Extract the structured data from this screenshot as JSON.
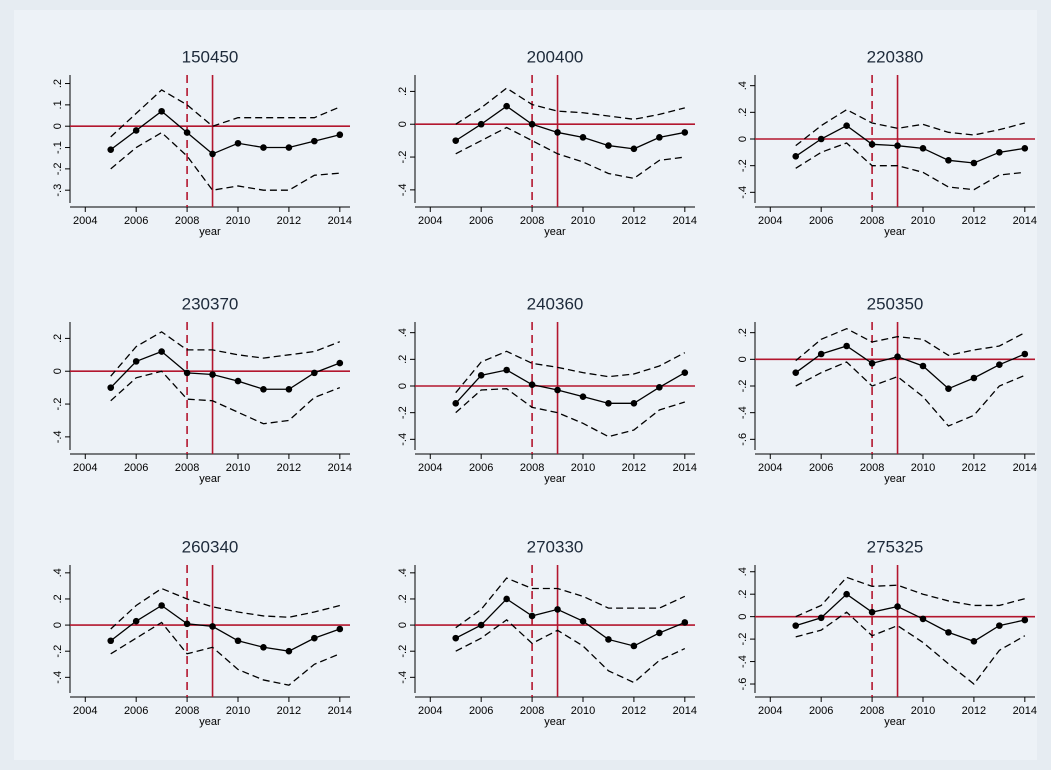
{
  "chart_data": [
    {
      "type": "line",
      "title": "150450",
      "xlabel": "year",
      "x": [
        2005,
        2006,
        2007,
        2008,
        2009,
        2010,
        2011,
        2012,
        2013,
        2014
      ],
      "xlim": [
        2003.4,
        2014.4
      ],
      "xticks": [
        2004,
        2006,
        2008,
        2010,
        2012,
        2014
      ],
      "ylim": [
        -0.36,
        0.24
      ],
      "yticks": [
        {
          "value": -0.3,
          "label": "-.3"
        },
        {
          "value": -0.2,
          "label": "-.2"
        },
        {
          "value": -0.1,
          "label": "-.1"
        },
        0,
        {
          "value": 0.1,
          "label": ".1"
        },
        {
          "value": 0.2,
          "label": ".2"
        }
      ],
      "reference_lines": {
        "color": "#b3162e",
        "y": [
          0
        ],
        "x": [
          {
            "value": 2008,
            "dash": true
          },
          {
            "value": 2009,
            "dash": false
          }
        ]
      },
      "series": [
        {
          "color": "#000000",
          "dash": false,
          "marker": true,
          "values": [
            -0.11,
            -0.02,
            0.07,
            -0.03,
            -0.13,
            -0.08,
            -0.1,
            -0.1,
            -0.07,
            -0.04
          ]
        },
        {
          "color": "#000000",
          "dash": true,
          "marker": false,
          "values": [
            -0.05,
            0.06,
            0.17,
            0.1,
            0.0,
            0.04,
            0.04,
            0.04,
            0.04,
            0.09
          ]
        },
        {
          "color": "#000000",
          "dash": true,
          "marker": false,
          "values": [
            -0.2,
            -0.1,
            -0.03,
            -0.14,
            -0.3,
            -0.28,
            -0.3,
            -0.3,
            -0.23,
            -0.22
          ]
        }
      ]
    },
    {
      "type": "line",
      "title": "200400",
      "xlabel": "year",
      "x": [
        2005,
        2006,
        2007,
        2008,
        2009,
        2010,
        2011,
        2012,
        2013,
        2014
      ],
      "xlim": [
        2003.4,
        2014.4
      ],
      "xticks": [
        2004,
        2006,
        2008,
        2010,
        2012,
        2014
      ],
      "ylim": [
        -0.48,
        0.3
      ],
      "yticks": [
        {
          "value": -0.4,
          "label": "-.4"
        },
        {
          "value": -0.2,
          "label": "-.2"
        },
        0,
        {
          "value": 0.2,
          "label": ".2"
        }
      ],
      "reference_lines": {
        "color": "#b3162e",
        "y": [
          0
        ],
        "x": [
          {
            "value": 2008,
            "dash": true
          },
          {
            "value": 2009,
            "dash": false
          }
        ]
      },
      "series": [
        {
          "color": "#000000",
          "dash": false,
          "marker": true,
          "values": [
            -0.1,
            0.0,
            0.11,
            0.0,
            -0.05,
            -0.08,
            -0.13,
            -0.15,
            -0.08,
            -0.05
          ]
        },
        {
          "color": "#000000",
          "dash": true,
          "marker": false,
          "values": [
            0.0,
            0.1,
            0.22,
            0.12,
            0.08,
            0.07,
            0.05,
            0.03,
            0.06,
            0.1
          ]
        },
        {
          "color": "#000000",
          "dash": true,
          "marker": false,
          "values": [
            -0.18,
            -0.1,
            -0.02,
            -0.1,
            -0.18,
            -0.23,
            -0.3,
            -0.33,
            -0.22,
            -0.2
          ]
        }
      ]
    },
    {
      "type": "line",
      "title": "220380",
      "xlabel": "year",
      "x": [
        2005,
        2006,
        2007,
        2008,
        2009,
        2010,
        2011,
        2012,
        2013,
        2014
      ],
      "xlim": [
        2003.4,
        2014.4
      ],
      "xticks": [
        2004,
        2006,
        2008,
        2010,
        2012,
        2014
      ],
      "ylim": [
        -0.48,
        0.48
      ],
      "yticks": [
        {
          "value": -0.4,
          "label": "-.4"
        },
        {
          "value": -0.2,
          "label": "-.2"
        },
        0,
        {
          "value": 0.2,
          "label": ".2"
        },
        {
          "value": 0.4,
          "label": ".4"
        }
      ],
      "reference_lines": {
        "color": "#b3162e",
        "y": [
          0
        ],
        "x": [
          {
            "value": 2008,
            "dash": true
          },
          {
            "value": 2009,
            "dash": false
          }
        ]
      },
      "series": [
        {
          "color": "#000000",
          "dash": false,
          "marker": true,
          "values": [
            -0.13,
            0.0,
            0.1,
            -0.04,
            -0.05,
            -0.07,
            -0.16,
            -0.18,
            -0.1,
            -0.07
          ]
        },
        {
          "color": "#000000",
          "dash": true,
          "marker": false,
          "values": [
            -0.05,
            0.1,
            0.22,
            0.12,
            0.08,
            0.11,
            0.05,
            0.03,
            0.07,
            0.12
          ]
        },
        {
          "color": "#000000",
          "dash": true,
          "marker": false,
          "values": [
            -0.22,
            -0.1,
            -0.03,
            -0.2,
            -0.2,
            -0.25,
            -0.36,
            -0.38,
            -0.27,
            -0.25
          ]
        }
      ]
    },
    {
      "type": "line",
      "title": "230370",
      "xlabel": "year",
      "x": [
        2005,
        2006,
        2007,
        2008,
        2009,
        2010,
        2011,
        2012,
        2013,
        2014
      ],
      "xlim": [
        2003.4,
        2014.4
      ],
      "xticks": [
        2004,
        2006,
        2008,
        2010,
        2012,
        2014
      ],
      "ylim": [
        -0.48,
        0.3
      ],
      "yticks": [
        {
          "value": -0.4,
          "label": "-.4"
        },
        {
          "value": -0.2,
          "label": "-.2"
        },
        0,
        {
          "value": 0.2,
          "label": ".2"
        }
      ],
      "reference_lines": {
        "color": "#b3162e",
        "y": [
          0
        ],
        "x": [
          {
            "value": 2008,
            "dash": true
          },
          {
            "value": 2009,
            "dash": false
          }
        ]
      },
      "series": [
        {
          "color": "#000000",
          "dash": false,
          "marker": true,
          "values": [
            -0.1,
            0.06,
            0.12,
            -0.01,
            -0.02,
            -0.06,
            -0.11,
            -0.11,
            -0.01,
            0.05
          ]
        },
        {
          "color": "#000000",
          "dash": true,
          "marker": false,
          "values": [
            -0.03,
            0.15,
            0.24,
            0.13,
            0.13,
            0.1,
            0.08,
            0.1,
            0.12,
            0.18
          ]
        },
        {
          "color": "#000000",
          "dash": true,
          "marker": false,
          "values": [
            -0.18,
            -0.04,
            0.0,
            -0.17,
            -0.18,
            -0.25,
            -0.32,
            -0.3,
            -0.16,
            -0.1
          ]
        }
      ]
    },
    {
      "type": "line",
      "title": "240360",
      "xlabel": "year",
      "x": [
        2005,
        2006,
        2007,
        2008,
        2009,
        2010,
        2011,
        2012,
        2013,
        2014
      ],
      "xlim": [
        2003.4,
        2014.4
      ],
      "xticks": [
        2004,
        2006,
        2008,
        2010,
        2012,
        2014
      ],
      "ylim": [
        -0.48,
        0.48
      ],
      "yticks": [
        {
          "value": -0.4,
          "label": "-.4"
        },
        {
          "value": -0.2,
          "label": "-.2"
        },
        0,
        {
          "value": 0.2,
          "label": ".2"
        },
        {
          "value": 0.4,
          "label": ".4"
        }
      ],
      "reference_lines": {
        "color": "#b3162e",
        "y": [
          0
        ],
        "x": [
          {
            "value": 2008,
            "dash": true
          },
          {
            "value": 2009,
            "dash": false
          }
        ]
      },
      "series": [
        {
          "color": "#000000",
          "dash": false,
          "marker": true,
          "values": [
            -0.13,
            0.08,
            0.12,
            0.01,
            -0.03,
            -0.08,
            -0.13,
            -0.13,
            -0.01,
            0.1
          ]
        },
        {
          "color": "#000000",
          "dash": true,
          "marker": false,
          "values": [
            -0.05,
            0.18,
            0.26,
            0.17,
            0.14,
            0.1,
            0.07,
            0.09,
            0.15,
            0.25
          ]
        },
        {
          "color": "#000000",
          "dash": true,
          "marker": false,
          "values": [
            -0.2,
            -0.03,
            -0.02,
            -0.16,
            -0.2,
            -0.28,
            -0.38,
            -0.33,
            -0.18,
            -0.12
          ]
        }
      ]
    },
    {
      "type": "line",
      "title": "250350",
      "xlabel": "year",
      "x": [
        2005,
        2006,
        2007,
        2008,
        2009,
        2010,
        2011,
        2012,
        2013,
        2014
      ],
      "xlim": [
        2003.4,
        2014.4
      ],
      "xticks": [
        2004,
        2006,
        2008,
        2010,
        2012,
        2014
      ],
      "ylim": [
        -0.68,
        0.28
      ],
      "yticks": [
        {
          "value": -0.6,
          "label": "-.6"
        },
        {
          "value": -0.4,
          "label": "-.4"
        },
        {
          "value": -0.2,
          "label": "-.2"
        },
        0,
        {
          "value": 0.2,
          "label": ".2"
        }
      ],
      "reference_lines": {
        "color": "#b3162e",
        "y": [
          0
        ],
        "x": [
          {
            "value": 2008,
            "dash": true
          },
          {
            "value": 2009,
            "dash": false
          }
        ]
      },
      "series": [
        {
          "color": "#000000",
          "dash": false,
          "marker": true,
          "values": [
            -0.1,
            0.04,
            0.1,
            -0.03,
            0.02,
            -0.05,
            -0.22,
            -0.14,
            -0.04,
            0.04
          ]
        },
        {
          "color": "#000000",
          "dash": true,
          "marker": false,
          "values": [
            -0.01,
            0.15,
            0.23,
            0.13,
            0.17,
            0.15,
            0.03,
            0.07,
            0.1,
            0.2
          ]
        },
        {
          "color": "#000000",
          "dash": true,
          "marker": false,
          "values": [
            -0.2,
            -0.1,
            -0.02,
            -0.2,
            -0.13,
            -0.28,
            -0.5,
            -0.42,
            -0.2,
            -0.12
          ]
        }
      ]
    },
    {
      "type": "line",
      "title": "260340",
      "xlabel": "year",
      "x": [
        2005,
        2006,
        2007,
        2008,
        2009,
        2010,
        2011,
        2012,
        2013,
        2014
      ],
      "xlim": [
        2003.4,
        2014.4
      ],
      "xticks": [
        2004,
        2006,
        2008,
        2010,
        2012,
        2014
      ],
      "ylim": [
        -0.52,
        0.46
      ],
      "yticks": [
        {
          "value": -0.4,
          "label": "-.4"
        },
        {
          "value": -0.2,
          "label": "-.2"
        },
        0,
        {
          "value": 0.2,
          "label": ".2"
        },
        {
          "value": 0.4,
          "label": ".4"
        }
      ],
      "reference_lines": {
        "color": "#b3162e",
        "y": [
          0
        ],
        "x": [
          {
            "value": 2008,
            "dash": true
          },
          {
            "value": 2009,
            "dash": false
          }
        ]
      },
      "series": [
        {
          "color": "#000000",
          "dash": false,
          "marker": true,
          "values": [
            -0.12,
            0.03,
            0.15,
            0.01,
            -0.01,
            -0.12,
            -0.17,
            -0.2,
            -0.1,
            -0.03
          ]
        },
        {
          "color": "#000000",
          "dash": true,
          "marker": false,
          "values": [
            -0.03,
            0.15,
            0.28,
            0.2,
            0.14,
            0.1,
            0.07,
            0.06,
            0.1,
            0.15
          ]
        },
        {
          "color": "#000000",
          "dash": true,
          "marker": false,
          "values": [
            -0.22,
            -0.1,
            0.02,
            -0.22,
            -0.17,
            -0.34,
            -0.42,
            -0.46,
            -0.3,
            -0.22
          ]
        }
      ]
    },
    {
      "type": "line",
      "title": "270330",
      "xlabel": "year",
      "x": [
        2005,
        2006,
        2007,
        2008,
        2009,
        2010,
        2011,
        2012,
        2013,
        2014
      ],
      "xlim": [
        2003.4,
        2014.4
      ],
      "xticks": [
        2004,
        2006,
        2008,
        2010,
        2012,
        2014
      ],
      "ylim": [
        -0.52,
        0.46
      ],
      "yticks": [
        {
          "value": -0.4,
          "label": "-.4"
        },
        {
          "value": -0.2,
          "label": "-.2"
        },
        0,
        {
          "value": 0.2,
          "label": ".2"
        },
        {
          "value": 0.4,
          "label": ".4"
        }
      ],
      "reference_lines": {
        "color": "#b3162e",
        "y": [
          0
        ],
        "x": [
          {
            "value": 2008,
            "dash": true
          },
          {
            "value": 2009,
            "dash": false
          }
        ]
      },
      "series": [
        {
          "color": "#000000",
          "dash": false,
          "marker": true,
          "values": [
            -0.1,
            0.0,
            0.2,
            0.07,
            0.12,
            0.03,
            -0.11,
            -0.16,
            -0.06,
            0.02
          ]
        },
        {
          "color": "#000000",
          "dash": true,
          "marker": false,
          "values": [
            -0.02,
            0.12,
            0.36,
            0.28,
            0.28,
            0.22,
            0.13,
            0.13,
            0.13,
            0.22
          ]
        },
        {
          "color": "#000000",
          "dash": true,
          "marker": false,
          "values": [
            -0.2,
            -0.1,
            0.04,
            -0.14,
            -0.04,
            -0.16,
            -0.35,
            -0.44,
            -0.27,
            -0.18
          ]
        }
      ]
    },
    {
      "type": "line",
      "title": "275325",
      "xlabel": "year",
      "x": [
        2005,
        2006,
        2007,
        2008,
        2009,
        2010,
        2011,
        2012,
        2013,
        2014
      ],
      "xlim": [
        2003.4,
        2014.4
      ],
      "xticks": [
        2004,
        2006,
        2008,
        2010,
        2012,
        2014
      ],
      "ylim": [
        -0.68,
        0.46
      ],
      "yticks": [
        {
          "value": -0.6,
          "label": "-.6"
        },
        {
          "value": -0.4,
          "label": "-.4"
        },
        {
          "value": -0.2,
          "label": "-.2"
        },
        0,
        {
          "value": 0.2,
          "label": ".2"
        },
        {
          "value": 0.4,
          "label": ".4"
        }
      ],
      "reference_lines": {
        "color": "#b3162e",
        "y": [
          0
        ],
        "x": [
          {
            "value": 2008,
            "dash": true
          },
          {
            "value": 2009,
            "dash": false
          }
        ]
      },
      "series": [
        {
          "color": "#000000",
          "dash": false,
          "marker": true,
          "values": [
            -0.08,
            -0.01,
            0.2,
            0.04,
            0.09,
            -0.02,
            -0.14,
            -0.22,
            -0.08,
            -0.03
          ]
        },
        {
          "color": "#000000",
          "dash": true,
          "marker": false,
          "values": [
            0.0,
            0.1,
            0.35,
            0.27,
            0.28,
            0.2,
            0.14,
            0.1,
            0.1,
            0.16
          ]
        },
        {
          "color": "#000000",
          "dash": true,
          "marker": false,
          "values": [
            -0.18,
            -0.12,
            0.04,
            -0.17,
            -0.08,
            -0.23,
            -0.42,
            -0.6,
            -0.3,
            -0.17
          ]
        }
      ]
    }
  ]
}
